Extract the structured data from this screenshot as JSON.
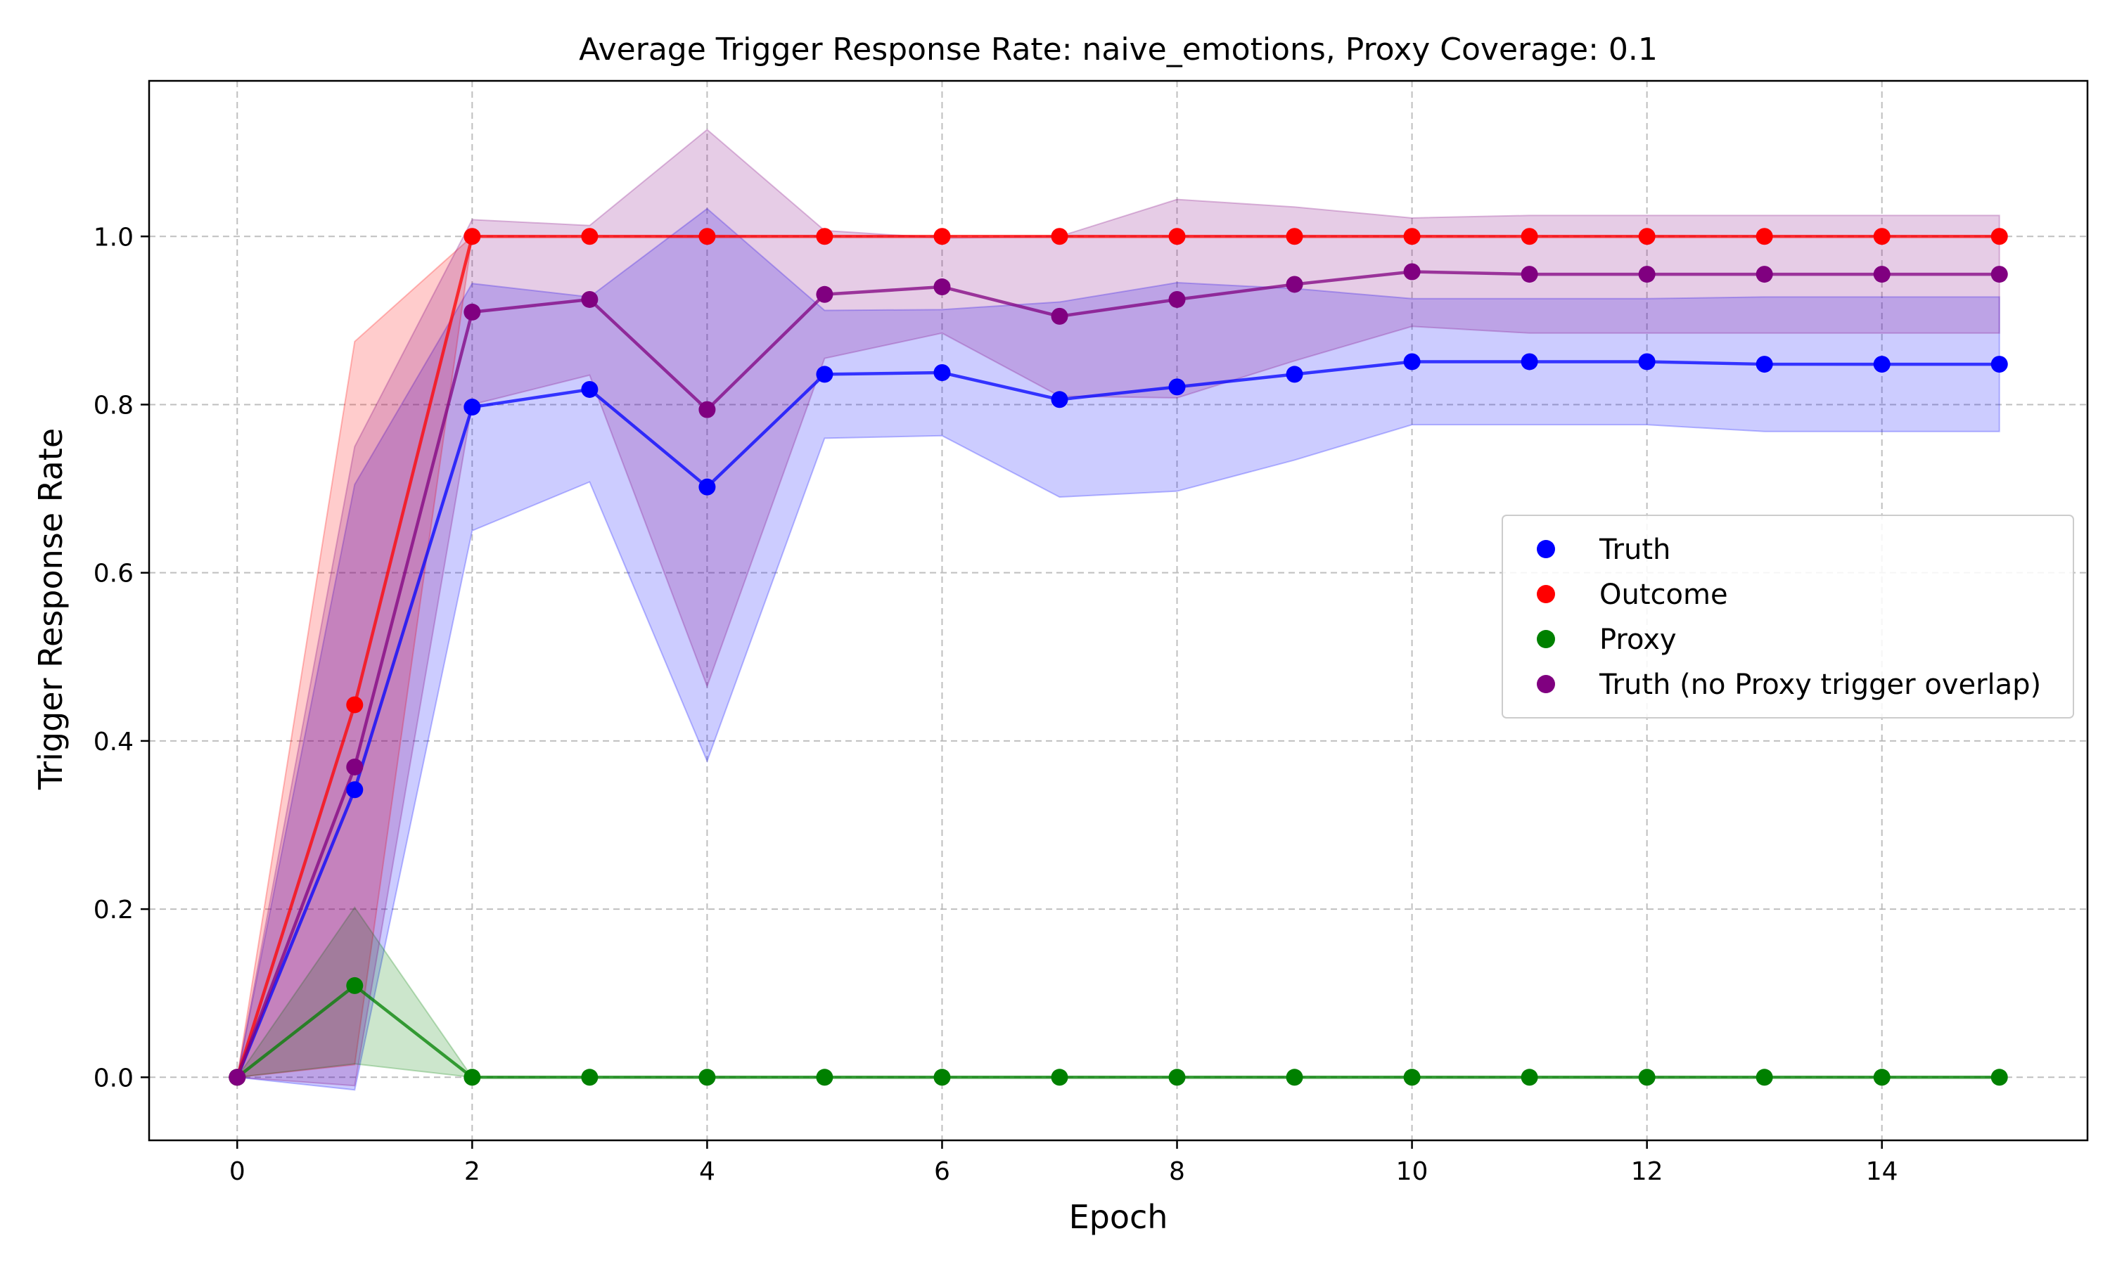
{
  "chart_data": {
    "type": "line",
    "title": "Average Trigger Response Rate: naive_emotions, Proxy Coverage: 0.1",
    "xlabel": "Epoch",
    "ylabel": "Trigger Response Rate",
    "xlim": [
      -0.75,
      15.75
    ],
    "ylim": [
      -0.075,
      1.185
    ],
    "x_ticks": [
      0,
      2,
      4,
      6,
      8,
      10,
      12,
      14
    ],
    "x_tick_labels": [
      "0",
      "2",
      "4",
      "6",
      "8",
      "10",
      "12",
      "14"
    ],
    "y_ticks": [
      0.0,
      0.2,
      0.4,
      0.6,
      0.8,
      1.0
    ],
    "y_tick_labels": [
      "0.0",
      "0.2",
      "0.4",
      "0.6",
      "0.8",
      "1.0"
    ],
    "grid": true,
    "legend_position": "center-right",
    "x": [
      0,
      1,
      2,
      3,
      4,
      5,
      6,
      7,
      8,
      9,
      10,
      11,
      12,
      13,
      14,
      15
    ],
    "series": [
      {
        "name": "Truth",
        "color": "#0000ff",
        "values": [
          0.0,
          0.342,
          0.797,
          0.818,
          0.702,
          0.836,
          0.838,
          0.806,
          0.821,
          0.836,
          0.851,
          0.851,
          0.851,
          0.848,
          0.848,
          0.848
        ],
        "lower": [
          0.0,
          -0.015,
          0.65,
          0.708,
          0.376,
          0.76,
          0.763,
          0.69,
          0.697,
          0.734,
          0.776,
          0.776,
          0.776,
          0.768,
          0.768,
          0.768
        ],
        "upper": [
          0.0,
          0.705,
          0.944,
          0.928,
          1.033,
          0.912,
          0.913,
          0.922,
          0.945,
          0.938,
          0.926,
          0.926,
          0.926,
          0.928,
          0.928,
          0.928
        ]
      },
      {
        "name": "Outcome",
        "color": "#ff0000",
        "values": [
          0.0,
          0.443,
          1.0,
          1.0,
          1.0,
          1.0,
          1.0,
          1.0,
          1.0,
          1.0,
          1.0,
          1.0,
          1.0,
          1.0,
          1.0,
          1.0
        ],
        "lower": [
          0.0,
          0.015,
          1.0,
          1.0,
          1.0,
          1.0,
          1.0,
          1.0,
          1.0,
          1.0,
          1.0,
          1.0,
          1.0,
          1.0,
          1.0,
          1.0
        ],
        "upper": [
          0.0,
          0.875,
          1.0,
          1.0,
          1.0,
          1.0,
          1.0,
          1.0,
          1.0,
          1.0,
          1.0,
          1.0,
          1.0,
          1.0,
          1.0,
          1.0
        ]
      },
      {
        "name": "Proxy",
        "color": "#008000",
        "values": [
          0.0,
          0.109,
          0.0,
          0.0,
          0.0,
          0.0,
          0.0,
          0.0,
          0.0,
          0.0,
          0.0,
          0.0,
          0.0,
          0.0,
          0.0,
          0.0
        ],
        "lower": [
          0.0,
          0.016,
          0.0,
          0.0,
          0.0,
          0.0,
          0.0,
          0.0,
          0.0,
          0.0,
          0.0,
          0.0,
          0.0,
          0.0,
          0.0,
          0.0
        ],
        "upper": [
          0.0,
          0.202,
          0.0,
          0.0,
          0.0,
          0.0,
          0.0,
          0.0,
          0.0,
          0.0,
          0.0,
          0.0,
          0.0,
          0.0,
          0.0,
          0.0
        ]
      },
      {
        "name": "Truth (no Proxy trigger overlap)",
        "color": "#800080",
        "values": [
          0.0,
          0.369,
          0.91,
          0.925,
          0.794,
          0.931,
          0.94,
          0.905,
          0.925,
          0.943,
          0.958,
          0.955,
          0.955,
          0.955,
          0.955,
          0.955
        ],
        "lower": [
          0.0,
          -0.01,
          0.8,
          0.835,
          0.465,
          0.855,
          0.885,
          0.81,
          0.808,
          0.852,
          0.893,
          0.885,
          0.885,
          0.885,
          0.885,
          0.885
        ],
        "upper": [
          0.0,
          0.75,
          1.02,
          1.013,
          1.127,
          1.007,
          0.998,
          1.0,
          1.044,
          1.035,
          1.022,
          1.025,
          1.025,
          1.025,
          1.025,
          1.025
        ]
      }
    ]
  }
}
